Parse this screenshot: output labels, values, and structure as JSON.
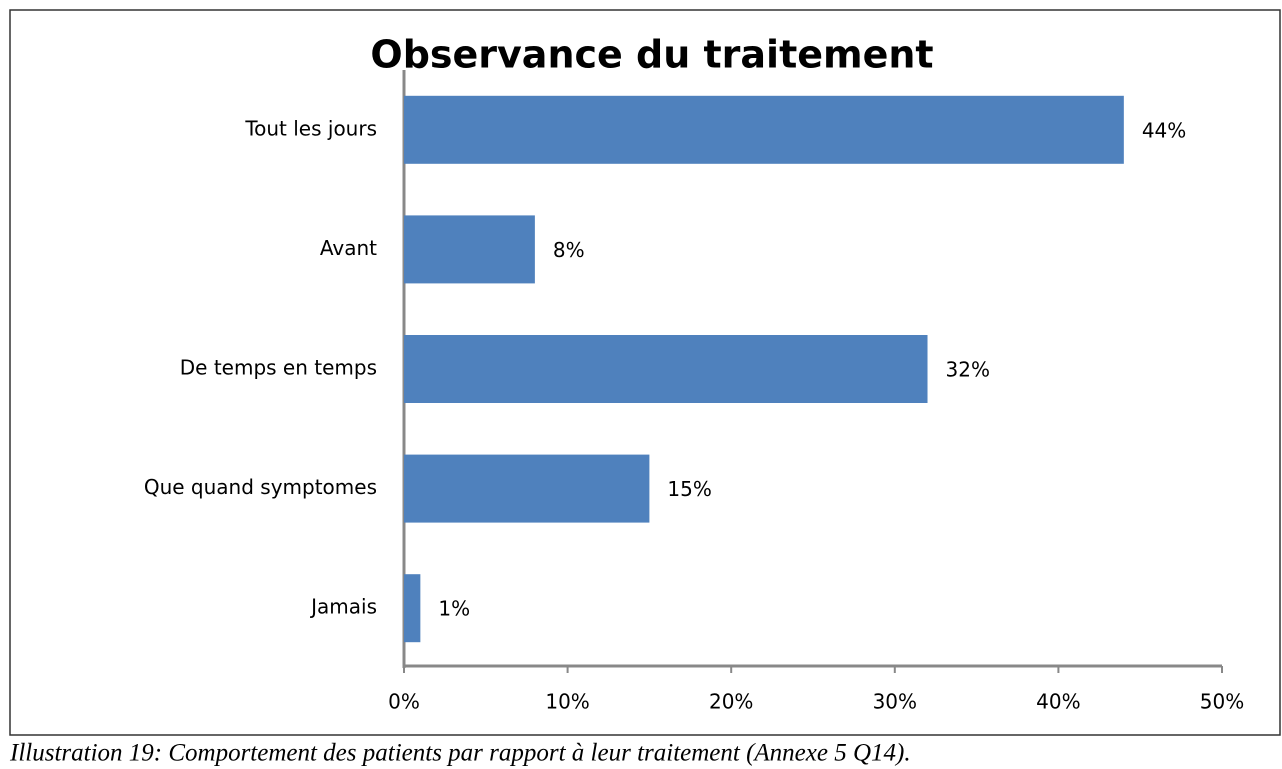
{
  "chart_data": {
    "type": "barh",
    "title": "Observance du traitement",
    "categories": [
      "Tout les jours",
      "Avant",
      "De temps en temps",
      "Que quand symptomes",
      "Jamais"
    ],
    "values": [
      44,
      8,
      32,
      15,
      1
    ],
    "value_labels": [
      "44%",
      "8%",
      "32%",
      "15%",
      "1%"
    ],
    "color": "#4f81bd",
    "xlim": [
      0,
      50
    ],
    "xticks": [
      {
        "value": 0,
        "label": "0%"
      },
      {
        "value": 10,
        "label": "10%"
      },
      {
        "value": 20,
        "label": "20%"
      },
      {
        "value": 30,
        "label": "30%"
      },
      {
        "value": 40,
        "label": "40%"
      },
      {
        "value": 50,
        "label": "50%"
      }
    ],
    "grid": false
  },
  "caption": "Illustration 19: Comportement des patients par rapport à leur traitement (Annexe 5 Q14)."
}
